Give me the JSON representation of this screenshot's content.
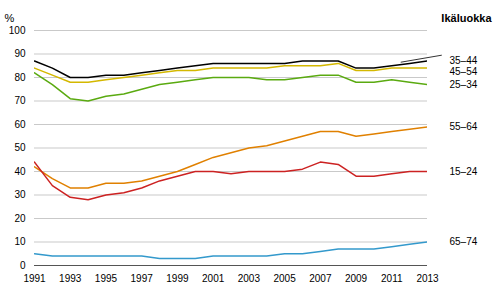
{
  "chart_data": {
    "type": "line",
    "x": [
      1991,
      1992,
      1993,
      1994,
      1995,
      1996,
      1997,
      1998,
      1999,
      2000,
      2001,
      2002,
      2003,
      2004,
      2005,
      2006,
      2007,
      2008,
      2009,
      2010,
      2011,
      2012,
      2013
    ],
    "series": [
      {
        "name": "35–44",
        "color": "#000000",
        "values": [
          87,
          84,
          80,
          80,
          81,
          81,
          82,
          83,
          84,
          85,
          86,
          86,
          86,
          86,
          86,
          87,
          87,
          87,
          84,
          84,
          85,
          86,
          87
        ]
      },
      {
        "name": "45–54",
        "color": "#d4b800",
        "values": [
          84,
          81,
          78,
          78,
          79,
          80,
          81,
          82,
          83,
          83,
          84,
          84,
          84,
          84,
          85,
          85,
          85,
          86,
          83,
          83,
          84,
          84,
          84
        ]
      },
      {
        "name": "25–34",
        "color": "#5aaa10",
        "values": [
          82,
          77,
          71,
          70,
          72,
          73,
          75,
          77,
          78,
          79,
          80,
          80,
          80,
          79,
          79,
          80,
          81,
          81,
          78,
          78,
          79,
          78,
          77
        ]
      },
      {
        "name": "55–64",
        "color": "#e08000",
        "values": [
          42,
          37,
          33,
          33,
          35,
          35,
          36,
          38,
          40,
          43,
          46,
          48,
          50,
          51,
          53,
          55,
          57,
          57,
          55,
          56,
          57,
          58,
          59
        ]
      },
      {
        "name": "15–24",
        "color": "#cc2222",
        "values": [
          44,
          34,
          29,
          28,
          30,
          31,
          33,
          36,
          38,
          40,
          40,
          39,
          40,
          40,
          40,
          41,
          44,
          43,
          38,
          38,
          39,
          40,
          40
        ]
      },
      {
        "name": "65–74",
        "color": "#3399cc",
        "values": [
          5,
          4,
          4,
          4,
          4,
          4,
          4,
          3,
          3,
          3,
          4,
          4,
          4,
          4,
          5,
          5,
          6,
          7,
          7,
          7,
          8,
          9,
          10
        ]
      }
    ],
    "ylabel": "%",
    "legend_title": "Ikäluokka",
    "xlim": [
      1991,
      2013
    ],
    "xticks": [
      1991,
      1993,
      1995,
      1997,
      1999,
      2001,
      2003,
      2005,
      2007,
      2009,
      2011,
      2013
    ],
    "ylim": [
      0,
      100
    ],
    "yticks": [
      0,
      10,
      20,
      30,
      40,
      50,
      60,
      70,
      80,
      90,
      100
    ],
    "grid": true,
    "annotations": [
      {
        "x1": 2011.5,
        "y1": 86.5,
        "x2": 2013.8,
        "y2": 89.5
      }
    ]
  }
}
